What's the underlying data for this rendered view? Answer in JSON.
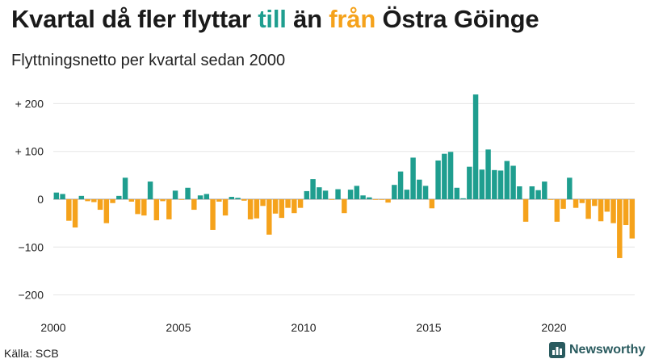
{
  "header": {
    "title_part1": "Kvartal då fler flyttar ",
    "title_till": "till",
    "title_part2": " än ",
    "title_fran": "från",
    "title_part3": " Östra Göinge",
    "subtitle": "Flyttningsnetto per kvartal sedan 2000"
  },
  "footer": {
    "source": "Källa: SCB",
    "brand": "Newsworthy",
    "brand_icon": "bar-chart-logo-icon"
  },
  "colors": {
    "positive": "#1f9e8f",
    "negative": "#f5a21b",
    "title_till": "#1f9e8f",
    "title_fran": "#f5a21b",
    "grid": "#e6e6e6",
    "zero": "#999999",
    "brand": "#2a5b5f"
  },
  "chart_data": {
    "type": "bar",
    "x_start": 2000,
    "period": "quarter",
    "ylim": [
      -220,
      230
    ],
    "y_ticks": [
      200,
      100,
      0,
      -100,
      -200
    ],
    "y_tick_labels": [
      "+ 200",
      "+ 100",
      "0",
      "−100",
      "−200"
    ],
    "x_ticks": [
      2000,
      2005,
      2010,
      2015,
      2020
    ],
    "x_tick_labels": [
      "2000",
      "2005",
      "2010",
      "2015",
      "2020"
    ],
    "grid": true,
    "values": [
      14,
      11,
      -45,
      -59,
      7,
      -4,
      -6,
      -22,
      -50,
      -8,
      7,
      45,
      -5,
      -31,
      -34,
      37,
      -44,
      -4,
      -42,
      18,
      -1,
      24,
      -22,
      8,
      11,
      -64,
      -5,
      -34,
      5,
      3,
      -3,
      -42,
      -40,
      -14,
      -74,
      -30,
      -39,
      -18,
      -29,
      -18,
      17,
      42,
      25,
      18,
      -1,
      21,
      -29,
      20,
      28,
      8,
      4,
      -1,
      -1,
      -7,
      30,
      58,
      20,
      87,
      41,
      28,
      -19,
      81,
      95,
      99,
      24,
      2,
      68,
      219,
      62,
      104,
      61,
      60,
      80,
      70,
      27,
      -47,
      27,
      19,
      37,
      -1,
      -47,
      -20,
      45,
      -18,
      -8,
      -41,
      -14,
      -46,
      -26,
      -50,
      -123,
      -54,
      -82
    ]
  }
}
